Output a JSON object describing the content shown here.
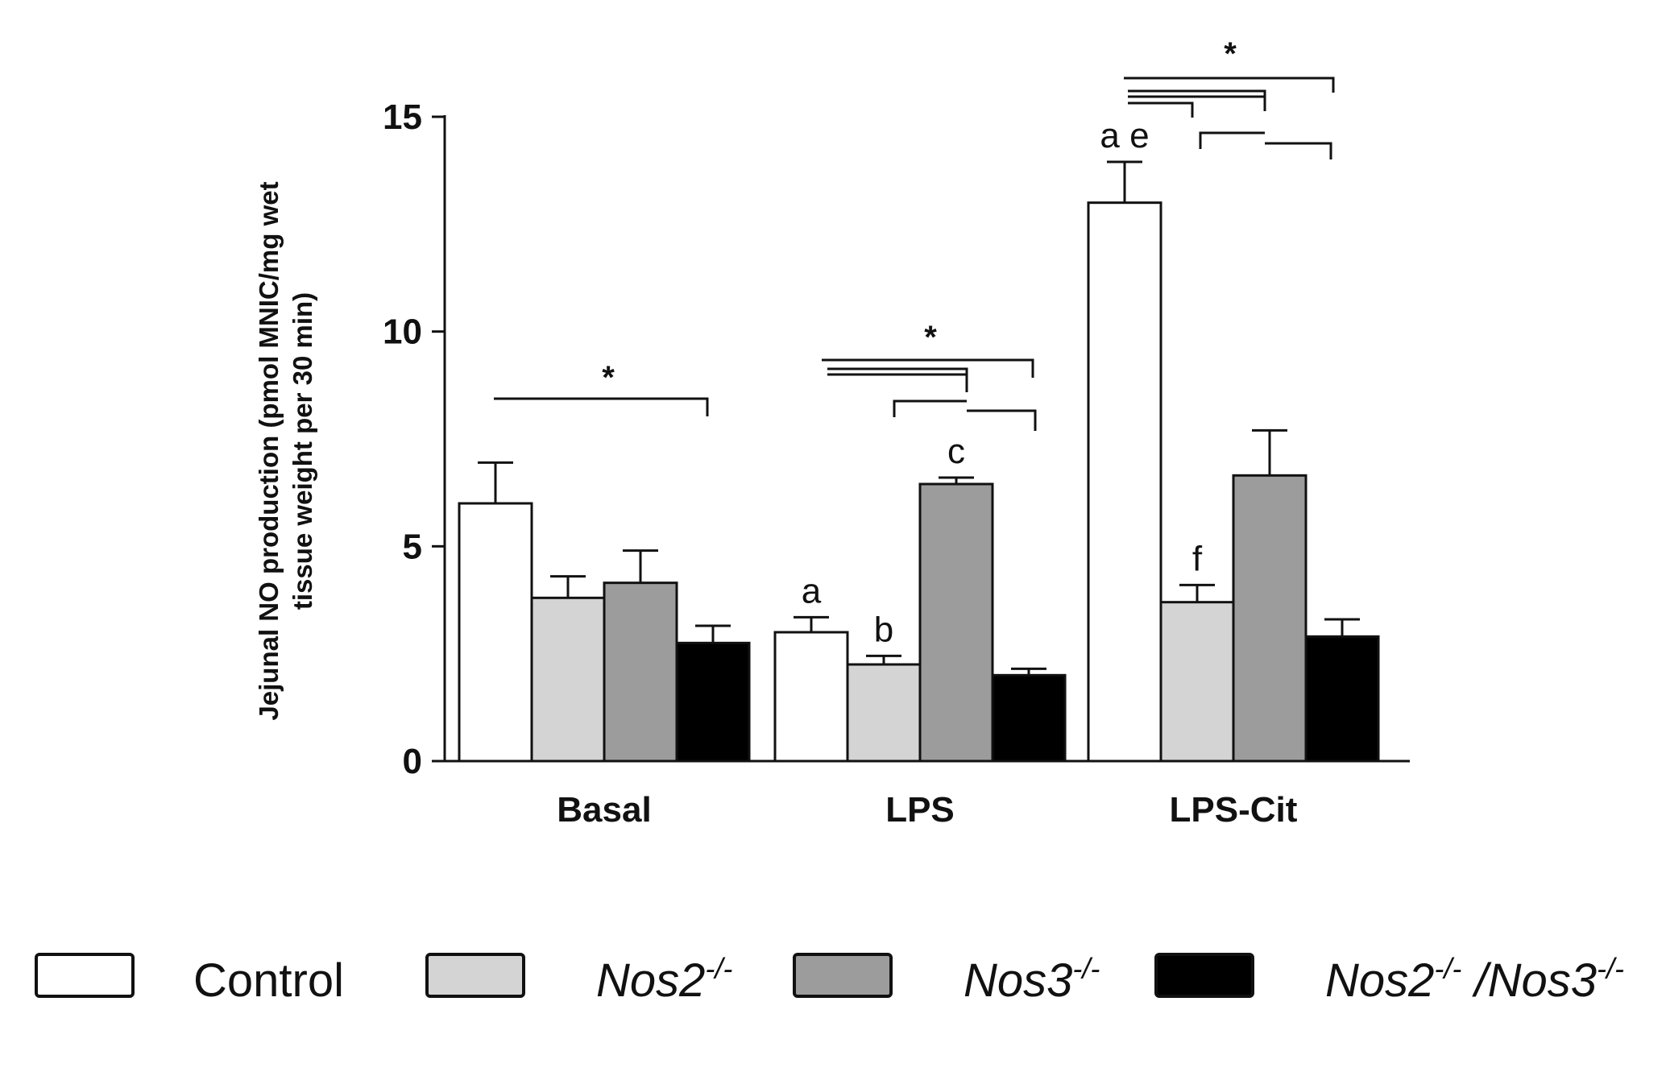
{
  "chart_data": {
    "type": "bar",
    "ylabel_line1": "Jejunal NO production (pmol MNIC/mg wet",
    "ylabel_line2": "tissue weight per 30 min)",
    "ylim": [
      0,
      15
    ],
    "yticks": [
      "0",
      "5",
      "10",
      "15"
    ],
    "ytick_values": [
      0,
      5,
      10,
      15
    ],
    "categories": [
      "Basal",
      "LPS",
      "LPS-Cit"
    ],
    "series": [
      {
        "name": "Control",
        "color": "#ffffff",
        "values": [
          6.0,
          3.0,
          13.0
        ],
        "errors": [
          0.95,
          0.35,
          0.95
        ]
      },
      {
        "name": "Nos2-/-",
        "color": "#d4d4d4",
        "values": [
          3.8,
          2.25,
          3.7
        ],
        "errors": [
          0.5,
          0.2,
          0.4
        ]
      },
      {
        "name": "Nos3-/-",
        "color": "#9c9c9c",
        "values": [
          4.15,
          6.45,
          6.65
        ],
        "errors": [
          0.75,
          0.15,
          1.05
        ]
      },
      {
        "name": "Nos2-/-/Nos3-/-",
        "color": "#000000",
        "values": [
          2.75,
          2.0,
          2.9
        ],
        "errors": [
          0.4,
          0.15,
          0.4
        ]
      }
    ],
    "annotations": [
      {
        "text": "a",
        "category": 1,
        "series": 0
      },
      {
        "text": "b",
        "category": 1,
        "series": 1
      },
      {
        "text": "c",
        "category": 1,
        "series": 2
      },
      {
        "text": "a e",
        "category": 2,
        "series": 0
      },
      {
        "text": "f",
        "category": 2,
        "series": 1
      }
    ],
    "significance_marker": "*",
    "legend": {
      "position": "bottom",
      "items": [
        {
          "base": "Control",
          "sup": "",
          "italic": false,
          "color": "#ffffff"
        },
        {
          "base": "Nos2",
          "sup": "-/-",
          "italic": true,
          "color": "#d4d4d4"
        },
        {
          "base": "Nos3",
          "sup": "-/-",
          "italic": true,
          "color": "#9c9c9c"
        },
        {
          "base": "Nos2",
          "sup": "-/-",
          "base2": " /Nos3",
          "sup2": "-/-",
          "italic": true,
          "color": "#000000"
        }
      ]
    }
  }
}
